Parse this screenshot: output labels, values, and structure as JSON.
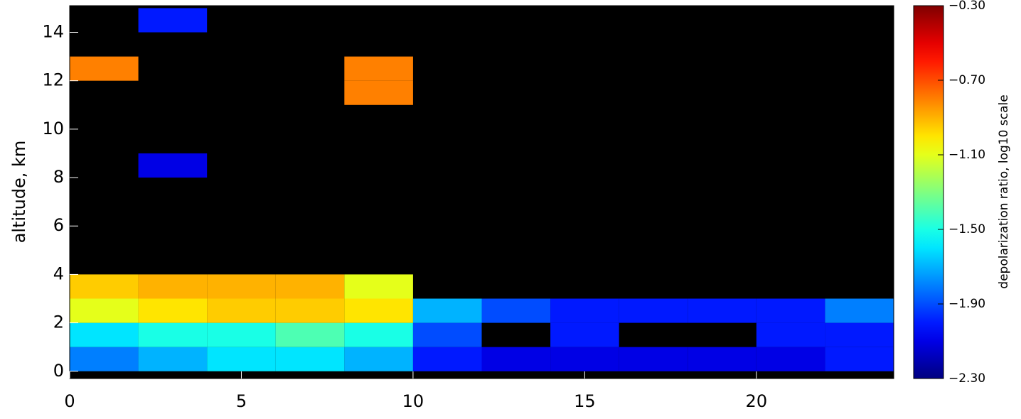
{
  "chart_data": {
    "type": "heatmap",
    "ylabel": "altitude, km",
    "colorbar_label": "depolarization ratio, log10 scale",
    "colormap": "jet",
    "x_edges": [
      0,
      2,
      4,
      6,
      8,
      10,
      12,
      14,
      16,
      18,
      20,
      22,
      24
    ],
    "y_edges": [
      0,
      1,
      2,
      3,
      4,
      5,
      6,
      7,
      8,
      9,
      10,
      11,
      12,
      13,
      14,
      15
    ],
    "z": [
      [
        -1.8,
        -1.7,
        -1.6,
        -1.6,
        -1.7,
        -2.0,
        -2.1,
        -2.1,
        -2.1,
        -2.1,
        -2.1,
        -2.0
      ],
      [
        -1.6,
        -1.5,
        -1.5,
        -1.4,
        -1.5,
        -1.9,
        null,
        -2.0,
        null,
        null,
        -2.0,
        -2.0
      ],
      [
        -1.1,
        -1.0,
        -0.95,
        -0.95,
        -1.0,
        -1.7,
        -1.9,
        -2.0,
        -2.0,
        -2.0,
        -2.0,
        -1.8
      ],
      [
        -0.95,
        -0.9,
        -0.9,
        -0.9,
        -1.1,
        null,
        null,
        null,
        null,
        null,
        null,
        null
      ],
      [
        null,
        null,
        null,
        null,
        null,
        null,
        null,
        null,
        null,
        null,
        null,
        null
      ],
      [
        null,
        null,
        null,
        null,
        null,
        null,
        null,
        null,
        null,
        null,
        null,
        null
      ],
      [
        null,
        null,
        null,
        null,
        null,
        null,
        null,
        null,
        null,
        null,
        null,
        null
      ],
      [
        null,
        null,
        null,
        null,
        null,
        null,
        null,
        null,
        null,
        null,
        null,
        null
      ],
      [
        null,
        -2.1,
        null,
        null,
        null,
        null,
        null,
        null,
        null,
        null,
        null,
        null
      ],
      [
        null,
        null,
        null,
        null,
        null,
        null,
        null,
        null,
        null,
        null,
        null,
        null
      ],
      [
        null,
        null,
        null,
        null,
        null,
        null,
        null,
        null,
        null,
        null,
        null,
        null
      ],
      [
        null,
        null,
        null,
        null,
        -0.8,
        null,
        null,
        null,
        null,
        null,
        null,
        null
      ],
      [
        -0.8,
        null,
        null,
        null,
        -0.8,
        null,
        null,
        null,
        null,
        null,
        null,
        null
      ],
      [
        null,
        null,
        null,
        null,
        null,
        null,
        null,
        null,
        null,
        null,
        null,
        null
      ],
      [
        null,
        -2.0,
        null,
        null,
        null,
        null,
        null,
        null,
        null,
        null,
        null,
        null
      ]
    ],
    "xlim": [
      0,
      24
    ],
    "xticks": [
      0,
      5,
      10,
      15,
      20
    ],
    "ylim": [
      -0.3,
      15.1
    ],
    "yticks": [
      0,
      2,
      4,
      6,
      8,
      10,
      12,
      14
    ],
    "clim": [
      -2.3,
      -0.3
    ],
    "cticks": [
      {
        "value": -2.3,
        "label": "−2.30"
      },
      {
        "value": -1.9,
        "label": "−1.90"
      },
      {
        "value": -1.5,
        "label": "−1.50"
      },
      {
        "value": -1.1,
        "label": "−1.10"
      },
      {
        "value": -0.7,
        "label": "−0.70"
      },
      {
        "value": -0.3,
        "label": "−0.30"
      }
    ]
  }
}
